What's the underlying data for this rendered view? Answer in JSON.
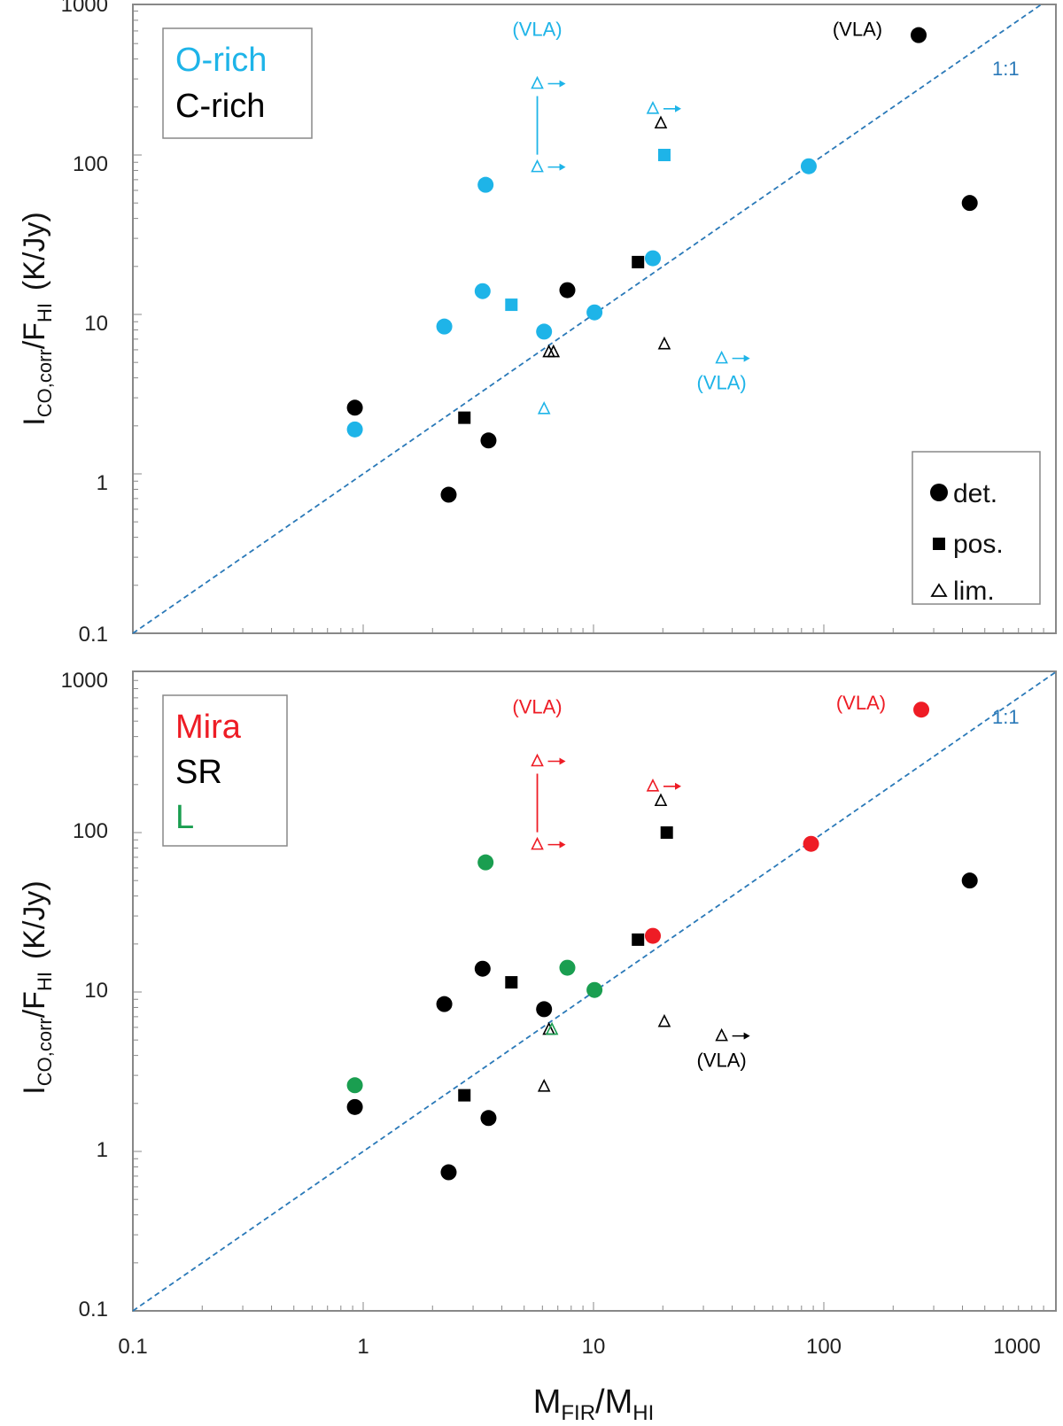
{
  "colors": {
    "o_rich": "#1eb4e8",
    "c_rich": "#000000",
    "mira": "#ee1c25",
    "sr": "#000000",
    "l": "#1a9e50",
    "one_to_one": "#2a79b8",
    "axis": "#888888"
  },
  "axes": {
    "xlabel_main": "M",
    "xlabel_sub1": "FIR",
    "xlabel_sep": "/M",
    "xlabel_sub2": "HI",
    "ylabel_main1": "I",
    "ylabel_sub1": "CO,corr",
    "ylabel_mid": "/F",
    "ylabel_sub2": "HI",
    "ylabel_unit": "(K/Jy)",
    "x_ticks": [
      "0.1",
      "1",
      "10",
      "100",
      "1000"
    ],
    "y_ticks": [
      "0.1",
      "1",
      "10",
      "100",
      "1000"
    ],
    "xlim": [
      0.1,
      1300
    ],
    "ylim": [
      0.1,
      1300
    ]
  },
  "marker_legend": {
    "det_label": "det.",
    "pos_label": "pos.",
    "lim_label": "lim."
  },
  "chart_data": [
    {
      "type": "scatter",
      "panel": "top",
      "scale": "log-log",
      "legend": [
        {
          "label": "O-rich",
          "color": "o_rich"
        },
        {
          "label": "C-rich",
          "color": "c_rich"
        }
      ],
      "one_to_one_label": "1:1",
      "series": [
        {
          "name": "O-rich",
          "color": "o_rich",
          "points": [
            {
              "x": 0.92,
              "y": 1.9,
              "m": "det"
            },
            {
              "x": 2.25,
              "y": 8.4,
              "m": "det"
            },
            {
              "x": 3.3,
              "y": 14,
              "m": "det"
            },
            {
              "x": 3.4,
              "y": 65,
              "m": "det"
            },
            {
              "x": 4.4,
              "y": 11.5,
              "m": "pos"
            },
            {
              "x": 6.1,
              "y": 7.8,
              "m": "det"
            },
            {
              "x": 10.1,
              "y": 10.3,
              "m": "det"
            },
            {
              "x": 18.1,
              "y": 22.5,
              "m": "det"
            },
            {
              "x": 20.3,
              "y": 100,
              "m": "pos"
            },
            {
              "x": 86,
              "y": 85,
              "m": "det"
            },
            {
              "x": 6.1,
              "y": 2.55,
              "m": "lim"
            },
            {
              "x": 18.1,
              "y": 195,
              "m": "lim",
              "arrow": true
            },
            {
              "x": 36,
              "y": 5.3,
              "m": "lim",
              "arrow": true
            },
            {
              "x": 5.7,
              "y": 280,
              "m": "lim",
              "arrow": true
            },
            {
              "x": 5.7,
              "y": 84,
              "m": "lim",
              "arrow": true
            }
          ]
        },
        {
          "name": "C-rich",
          "color": "c_rich",
          "points": [
            {
              "x": 0.92,
              "y": 2.6,
              "m": "det"
            },
            {
              "x": 2.35,
              "y": 0.74,
              "m": "det"
            },
            {
              "x": 2.75,
              "y": 2.25,
              "m": "pos"
            },
            {
              "x": 3.5,
              "y": 1.62,
              "m": "det"
            },
            {
              "x": 7.7,
              "y": 14.2,
              "m": "det"
            },
            {
              "x": 15.6,
              "y": 21.3,
              "m": "pos"
            },
            {
              "x": 258,
              "y": 565,
              "m": "det"
            },
            {
              "x": 430,
              "y": 50,
              "m": "det"
            },
            {
              "x": 6.4,
              "y": 5.8,
              "m": "lim"
            },
            {
              "x": 6.7,
              "y": 5.8,
              "m": "lim"
            },
            {
              "x": 19.6,
              "y": 158,
              "m": "lim"
            },
            {
              "x": 20.3,
              "y": 6.5,
              "m": "lim"
            }
          ]
        }
      ],
      "annotations": [
        {
          "text": "(VLA)",
          "x": 5.7,
          "y": 560,
          "color": "o_rich"
        },
        {
          "text": "(VLA)",
          "x": 36,
          "y": 3.4,
          "color": "o_rich"
        },
        {
          "text": "(VLA)",
          "x": 140,
          "y": 560,
          "color": "c_rich"
        }
      ]
    },
    {
      "type": "scatter",
      "panel": "bottom",
      "scale": "log-log",
      "legend": [
        {
          "label": "Mira",
          "color": "mira"
        },
        {
          "label": "SR",
          "color": "sr"
        },
        {
          "label": "L",
          "color": "l"
        }
      ],
      "one_to_one_label": "1:1",
      "series": [
        {
          "name": "Mira",
          "color": "mira",
          "points": [
            {
              "x": 18.1,
              "y": 22.5,
              "m": "det"
            },
            {
              "x": 88,
              "y": 85,
              "m": "det"
            },
            {
              "x": 265,
              "y": 590,
              "m": "det"
            },
            {
              "x": 18.1,
              "y": 195,
              "m": "lim",
              "arrow": true
            },
            {
              "x": 5.7,
              "y": 280,
              "m": "lim",
              "arrow": true
            },
            {
              "x": 5.7,
              "y": 84,
              "m": "lim",
              "arrow": true
            }
          ]
        },
        {
          "name": "SR",
          "color": "sr",
          "points": [
            {
              "x": 0.92,
              "y": 1.9,
              "m": "det"
            },
            {
              "x": 2.25,
              "y": 8.4,
              "m": "det"
            },
            {
              "x": 2.35,
              "y": 0.74,
              "m": "det"
            },
            {
              "x": 2.75,
              "y": 2.25,
              "m": "pos"
            },
            {
              "x": 3.3,
              "y": 14,
              "m": "det"
            },
            {
              "x": 3.5,
              "y": 1.62,
              "m": "det"
            },
            {
              "x": 4.4,
              "y": 11.5,
              "m": "pos"
            },
            {
              "x": 6.1,
              "y": 7.8,
              "m": "det"
            },
            {
              "x": 15.6,
              "y": 21.3,
              "m": "pos"
            },
            {
              "x": 20.8,
              "y": 100,
              "m": "pos"
            },
            {
              "x": 430,
              "y": 50,
              "m": "det"
            },
            {
              "x": 6.1,
              "y": 2.55,
              "m": "lim"
            },
            {
              "x": 6.4,
              "y": 5.8,
              "m": "lim"
            },
            {
              "x": 19.6,
              "y": 158,
              "m": "lim"
            },
            {
              "x": 20.3,
              "y": 6.5,
              "m": "lim"
            },
            {
              "x": 36,
              "y": 5.3,
              "m": "lim",
              "arrow": true
            }
          ]
        },
        {
          "name": "L",
          "color": "l",
          "points": [
            {
              "x": 0.92,
              "y": 2.6,
              "m": "det"
            },
            {
              "x": 3.4,
              "y": 65,
              "m": "det"
            },
            {
              "x": 7.7,
              "y": 14.2,
              "m": "det"
            },
            {
              "x": 10.1,
              "y": 10.3,
              "m": "det"
            },
            {
              "x": 6.6,
              "y": 5.8,
              "m": "lim"
            }
          ]
        }
      ],
      "annotations": [
        {
          "text": "(VLA)",
          "x": 5.7,
          "y": 560,
          "color": "mira"
        },
        {
          "text": "(VLA)",
          "x": 36,
          "y": 3.4,
          "color": "sr"
        },
        {
          "text": "(VLA)",
          "x": 145,
          "y": 590,
          "color": "mira"
        }
      ]
    }
  ]
}
